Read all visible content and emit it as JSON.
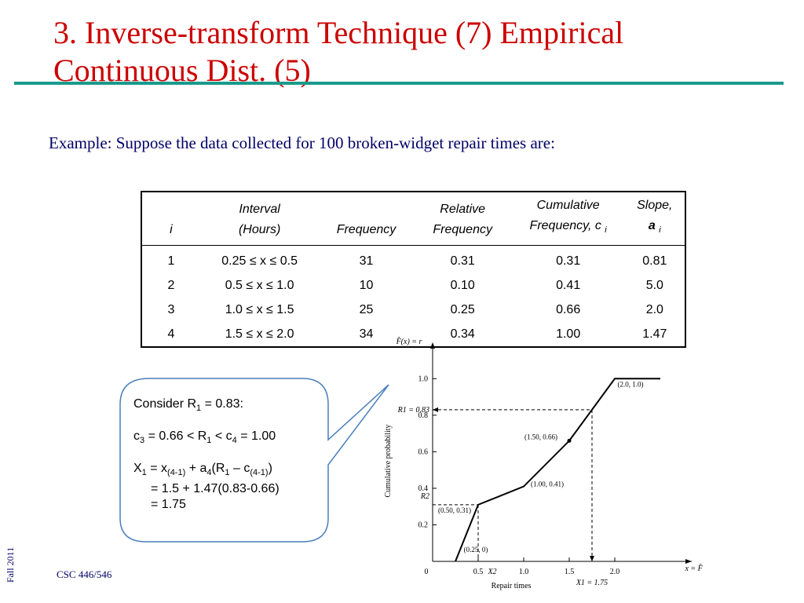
{
  "slide": {
    "title_line1": "3. Inverse-transform Technique (7) Empirical",
    "title_line2": "Continuous Dist. (5)",
    "intro": "Example: Suppose the data collected for 100 broken-widget repair times are:",
    "footer_course": "CSC 446/546",
    "footer_term": "Fall 2011",
    "accent_color": "#cc0000",
    "rule_color": "#1a9a8c"
  },
  "table": {
    "headers": {
      "i": "i",
      "interval_1": "Interval",
      "interval_2": "(Hours)",
      "frequency": "Frequency",
      "rel_1": "Relative",
      "rel_2": "Frequency",
      "cum_1": "Cumulative",
      "cum_2": "Frequency, c",
      "cum_sub": "i",
      "slope_1": "Slope,",
      "slope_2": "a",
      "slope_sub": "i"
    },
    "rows": [
      {
        "i": "1",
        "interval": "0.25 ≤ x ≤ 0.5",
        "frequency": "31",
        "relative": "0.31",
        "cumulative": "0.31",
        "slope": "0.81"
      },
      {
        "i": "2",
        "interval": "0.5 ≤ x ≤ 1.0",
        "frequency": "10",
        "relative": "0.10",
        "cumulative": "0.41",
        "slope": "5.0"
      },
      {
        "i": "3",
        "interval": "1.0 ≤ x ≤ 1.5",
        "frequency": "25",
        "relative": "0.25",
        "cumulative": "0.66",
        "slope": "2.0"
      },
      {
        "i": "4",
        "interval": "1.5 ≤ x ≤ 2.0",
        "frequency": "34",
        "relative": "0.34",
        "cumulative": "1.00",
        "slope": "1.47"
      }
    ]
  },
  "callout": {
    "l1_a": "Consider R",
    "l1_sub": "1",
    "l1_b": " = 0.83:",
    "l2_a": "c",
    "l2_s1": "3",
    "l2_b": " = 0.66 < R",
    "l2_s2": "1",
    "l2_c": " < c",
    "l2_s3": "4",
    "l2_d": " = 1.00",
    "l3_a": "X",
    "l3_s1": "1",
    "l3_b": " = x",
    "l3_s2": "(4-1)",
    "l3_c": " + a",
    "l3_s3": "4",
    "l3_d": "(R",
    "l3_s4": "1",
    "l3_e": " – c",
    "l3_s5": "(4-1)",
    "l3_f": ")",
    "l4": "= 1.5 + 1.47(0.83-0.66)",
    "l5": "= 1.75"
  },
  "chart_data": {
    "type": "line",
    "ylabel": "Cumulative probability",
    "xlabel": "Repair times",
    "x_axis_label": "x = F̂⁻¹(r)",
    "y_axis_label": "F̂(x) = r",
    "xlim": [
      0,
      2.5
    ],
    "ylim": [
      0,
      1.1
    ],
    "x_ticks": [
      "0",
      "0.5",
      "1.0",
      "1.5",
      "2.0"
    ],
    "y_ticks": [
      "0.2",
      "0.4",
      "0.6",
      "0.8",
      "1.0"
    ],
    "y_tick_origin": "0",
    "series": [
      {
        "x": [
          0.25,
          0.5,
          1.0,
          1.5,
          2.0,
          2.5
        ],
        "y": [
          0,
          0.31,
          0.41,
          0.66,
          1.0,
          1.0
        ]
      }
    ],
    "point_labels": [
      {
        "x": 0.25,
        "y": 0,
        "text": "(0.25, 0)"
      },
      {
        "x": 0.5,
        "y": 0.31,
        "text": "(0.50, 0.31)"
      },
      {
        "x": 1.0,
        "y": 0.41,
        "text": "(1.00, 0.41)"
      },
      {
        "x": 1.5,
        "y": 0.66,
        "text": "(1.50, 0.66)"
      },
      {
        "x": 2.0,
        "y": 1.0,
        "text": "(2.0, 1.0)"
      }
    ],
    "annotations": {
      "r1": {
        "y": 0.83,
        "label": "R1 = 0.83",
        "x": 1.75,
        "x_label": "X1 = 1.75"
      },
      "r2": {
        "y": 0.31,
        "label": "R2",
        "x": 0.5,
        "x_label": "X2"
      }
    }
  }
}
